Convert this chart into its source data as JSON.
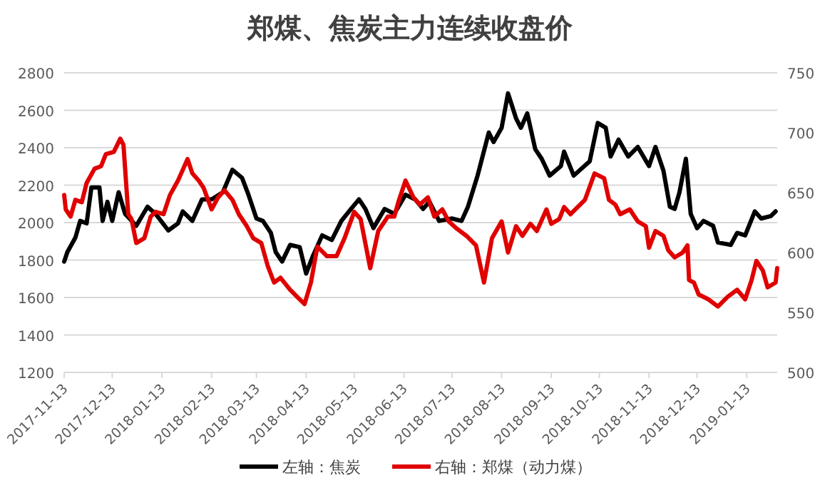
{
  "chart_data": {
    "type": "line",
    "title": "郑煤、焦炭主力连续收盘价",
    "xlim": [
      "2017-11-13",
      "2019-02-01"
    ],
    "xticks": [
      "2017-11-13",
      "2017-12-13",
      "2018-01-13",
      "2018-02-13",
      "2018-03-13",
      "2018-04-13",
      "2018-05-13",
      "2018-06-13",
      "2018-07-13",
      "2018-08-13",
      "2018-09-13",
      "2018-10-13",
      "2018-11-13",
      "2018-12-13",
      "2019-01-13"
    ],
    "ylim": [
      1200,
      2800
    ],
    "yticks": [
      1200,
      1400,
      1600,
      1800,
      2000,
      2200,
      2400,
      2600,
      2800
    ],
    "y2lim": [
      500,
      750
    ],
    "y2ticks": [
      500,
      550,
      600,
      650,
      700,
      750
    ],
    "grid": "y",
    "legend": "bottom",
    "series": [
      {
        "name": "左轴：焦炭",
        "color": "#000000",
        "axis": "y",
        "x": [
          "2017-11-13",
          "2017-11-15",
          "2017-11-20",
          "2017-11-23",
          "2017-11-27",
          "2017-11-30",
          "2017-12-05",
          "2017-12-07",
          "2017-12-10",
          "2017-12-13",
          "2017-12-17",
          "2017-12-21",
          "2017-12-28",
          "2018-01-04",
          "2018-01-09",
          "2018-01-17",
          "2018-01-23",
          "2018-01-26",
          "2018-02-01",
          "2018-02-07",
          "2018-02-13",
          "2018-02-20",
          "2018-02-26",
          "2018-03-04",
          "2018-03-08",
          "2018-03-13",
          "2018-03-17",
          "2018-03-22",
          "2018-03-25",
          "2018-03-29",
          "2018-04-03",
          "2018-04-09",
          "2018-04-13",
          "2018-04-17",
          "2018-04-23",
          "2018-04-29",
          "2018-05-05",
          "2018-05-11",
          "2018-05-16",
          "2018-05-20",
          "2018-05-25",
          "2018-06-01",
          "2018-06-07",
          "2018-06-14",
          "2018-06-20",
          "2018-06-25",
          "2018-06-29",
          "2018-07-05",
          "2018-07-13",
          "2018-07-19",
          "2018-07-23",
          "2018-07-29",
          "2018-08-05",
          "2018-08-08",
          "2018-08-13",
          "2018-08-17",
          "2018-08-22",
          "2018-08-25",
          "2018-08-29",
          "2018-09-03",
          "2018-09-07",
          "2018-09-12",
          "2018-09-19",
          "2018-09-21",
          "2018-09-27",
          "2018-10-07",
          "2018-10-12",
          "2018-10-17",
          "2018-10-20",
          "2018-10-25",
          "2018-10-31",
          "2018-11-06",
          "2018-11-13",
          "2018-11-17",
          "2018-11-22",
          "2018-11-26",
          "2018-11-29",
          "2018-12-02",
          "2018-12-06",
          "2018-12-09",
          "2018-12-13",
          "2018-12-17",
          "2018-12-23",
          "2018-12-26",
          "2019-01-03",
          "2019-01-07",
          "2019-01-12",
          "2019-01-18",
          "2019-01-22",
          "2019-01-28",
          "2019-01-31"
        ],
        "values": [
          1792,
          1843,
          1920,
          2009,
          1996,
          2188,
          2188,
          2009,
          2111,
          2009,
          2162,
          2047,
          1983,
          2085,
          2047,
          1958,
          1996,
          2060,
          2009,
          2124,
          2124,
          2162,
          2282,
          2239,
          2149,
          2022,
          2009,
          1945,
          1843,
          1792,
          1881,
          1869,
          1728,
          1817,
          1932,
          1907,
          2009,
          2073,
          2124,
          2073,
          1971,
          2073,
          2047,
          2149,
          2124,
          2073,
          2111,
          2009,
          2022,
          2009,
          2085,
          2251,
          2481,
          2430,
          2506,
          2690,
          2557,
          2506,
          2583,
          2392,
          2341,
          2251,
          2302,
          2379,
          2251,
          2328,
          2532,
          2506,
          2353,
          2443,
          2353,
          2404,
          2302,
          2404,
          2277,
          2085,
          2073,
          2162,
          2341,
          2047,
          1970,
          2009,
          1983,
          1894,
          1881,
          1945,
          1932,
          2060,
          2022,
          2035,
          2060
        ]
      },
      {
        "name": "右轴：郑煤（动力煤）",
        "color": "#e00000",
        "axis": "y2",
        "x": [
          "2017-11-13",
          "2017-11-14",
          "2017-11-17",
          "2017-11-20",
          "2017-11-24",
          "2017-11-27",
          "2017-12-02",
          "2017-12-06",
          "2017-12-09",
          "2017-12-14",
          "2017-12-18",
          "2017-12-20",
          "2017-12-23",
          "2017-12-25",
          "2017-12-28",
          "2018-01-02",
          "2018-01-06",
          "2018-01-09",
          "2018-01-14",
          "2018-01-18",
          "2018-01-23",
          "2018-01-29",
          "2018-02-01",
          "2018-02-05",
          "2018-02-08",
          "2018-02-13",
          "2018-02-17",
          "2018-02-21",
          "2018-02-26",
          "2018-03-02",
          "2018-03-07",
          "2018-03-11",
          "2018-03-16",
          "2018-03-20",
          "2018-03-24",
          "2018-03-28",
          "2018-04-03",
          "2018-04-09",
          "2018-04-12",
          "2018-04-16",
          "2018-04-20",
          "2018-04-26",
          "2018-05-02",
          "2018-05-07",
          "2018-05-13",
          "2018-05-17",
          "2018-05-23",
          "2018-05-28",
          "2018-06-03",
          "2018-06-07",
          "2018-06-10",
          "2018-06-14",
          "2018-06-19",
          "2018-06-23",
          "2018-06-28",
          "2018-07-02",
          "2018-07-07",
          "2018-07-11",
          "2018-07-16",
          "2018-07-22",
          "2018-07-28",
          "2018-08-02",
          "2018-08-07",
          "2018-08-13",
          "2018-08-17",
          "2018-08-22",
          "2018-08-26",
          "2018-08-31",
          "2018-09-04",
          "2018-09-10",
          "2018-09-13",
          "2018-09-18",
          "2018-09-21",
          "2018-09-25",
          "2018-10-04",
          "2018-10-10",
          "2018-10-16",
          "2018-10-19",
          "2018-10-23",
          "2018-10-26",
          "2018-11-01",
          "2018-11-06",
          "2018-11-11",
          "2018-11-13",
          "2018-11-17",
          "2018-11-22",
          "2018-11-25",
          "2018-11-29",
          "2018-12-04",
          "2018-12-07",
          "2018-12-08",
          "2018-12-11",
          "2018-12-14",
          "2018-12-20",
          "2018-12-26",
          "2019-01-01",
          "2019-01-07",
          "2019-01-12",
          "2019-01-16",
          "2019-01-19",
          "2019-01-23",
          "2019-01-26",
          "2019-01-31",
          "2019-02-01"
        ],
        "values": [
          648,
          636,
          630,
          644,
          642,
          658,
          670,
          672,
          682,
          684,
          695,
          690,
          632,
          628,
          608,
          612,
          630,
          634,
          632,
          648,
          660,
          678,
          666,
          660,
          654,
          636,
          646,
          652,
          644,
          632,
          622,
          612,
          608,
          589,
          575,
          579,
          569,
          561,
          557,
          575,
          605,
          597,
          597,
          612,
          634,
          628,
          587,
          618,
          630,
          630,
          644,
          660,
          646,
          640,
          646,
          630,
          636,
          626,
          620,
          614,
          606,
          575,
          612,
          626,
          600,
          622,
          614,
          624,
          618,
          636,
          624,
          628,
          638,
          632,
          644,
          666,
          662,
          644,
          640,
          632,
          636,
          626,
          622,
          604,
          618,
          614,
          602,
          596,
          600,
          606,
          577,
          575,
          565,
          561,
          555,
          563,
          569,
          561,
          577,
          593,
          585,
          571,
          575,
          587
        ]
      }
    ]
  }
}
